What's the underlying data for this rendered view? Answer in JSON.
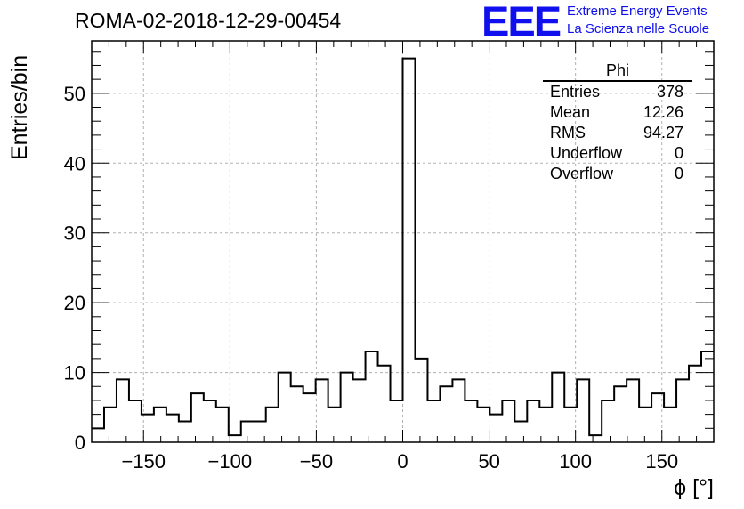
{
  "title": "ROMA-02-2018-12-29-00454",
  "logo": {
    "mark": "EEE",
    "line1": "Extreme Energy Events",
    "line2": "La Scienza nelle Scuole",
    "color": "#1010ee"
  },
  "stats": {
    "name": "Phi",
    "rows": [
      {
        "label": "Entries",
        "value": "378"
      },
      {
        "label": "Mean",
        "value": "12.26"
      },
      {
        "label": "RMS",
        "value": "94.27"
      },
      {
        "label": "Underflow",
        "value": "0"
      },
      {
        "label": "Overflow",
        "value": "0"
      }
    ]
  },
  "chart_data": {
    "type": "bar",
    "style": "step-histogram",
    "title": "ROMA-02-2018-12-29-00454",
    "xlabel": "ϕ [°]",
    "ylabel": "Entries/bin",
    "xlim": [
      -180,
      180
    ],
    "ylim": [
      0,
      57.5
    ],
    "bin_width": 7.2,
    "values": [
      2,
      5,
      9,
      6,
      4,
      5,
      4,
      3,
      7,
      6,
      5,
      1,
      3,
      3,
      5,
      10,
      8,
      7,
      9,
      5,
      10,
      9,
      13,
      11,
      6,
      55,
      12,
      6,
      8,
      9,
      6,
      5,
      4,
      6,
      3,
      6,
      5,
      10,
      5,
      9,
      1,
      6,
      8,
      9,
      5,
      7,
      5,
      9,
      11,
      13
    ],
    "x_ticks": [
      "−150",
      "−100",
      "−50",
      "0",
      "50",
      "100",
      "150"
    ],
    "x_tick_values": [
      -150,
      -100,
      -50,
      0,
      50,
      100,
      150
    ],
    "y_ticks": [
      "0",
      "10",
      "20",
      "30",
      "40",
      "50"
    ],
    "y_tick_values": [
      0,
      10,
      20,
      30,
      40,
      50
    ],
    "grid": true,
    "line_color": "#000000",
    "grid_color": "#b0b0b0"
  }
}
